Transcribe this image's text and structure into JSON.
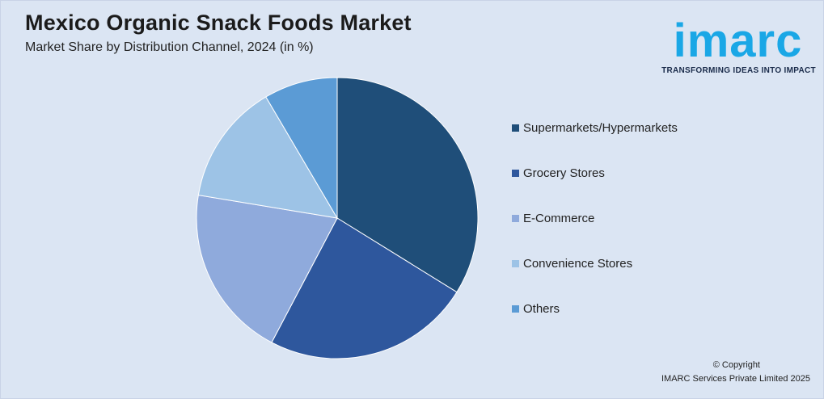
{
  "header": {
    "title": "Mexico Organic Snack Foods Market",
    "subtitle": "Market Share by Distribution Channel, 2024 (in %)"
  },
  "logo": {
    "wordmark": "imarc",
    "tagline": "TRANSFORMING IDEAS INTO IMPACT"
  },
  "footer": {
    "copyright": "© Copyright",
    "company": "IMARC Services Private Limited 2025"
  },
  "chart_data": {
    "type": "pie",
    "title": "Mexico Organic Snack Foods Market",
    "subtitle": "Market Share by Distribution Channel, 2024 (in %)",
    "legend_position": "right",
    "categories": [
      "Supermarkets/Hypermarkets",
      "Grocery Stores",
      "E-Commerce",
      "Convenience Stores",
      "Others"
    ],
    "values": [
      34,
      24,
      20,
      14,
      8.5
    ],
    "colors": [
      "#1f4e79",
      "#2e579d",
      "#8faadc",
      "#9dc3e6",
      "#5b9bd5"
    ]
  }
}
